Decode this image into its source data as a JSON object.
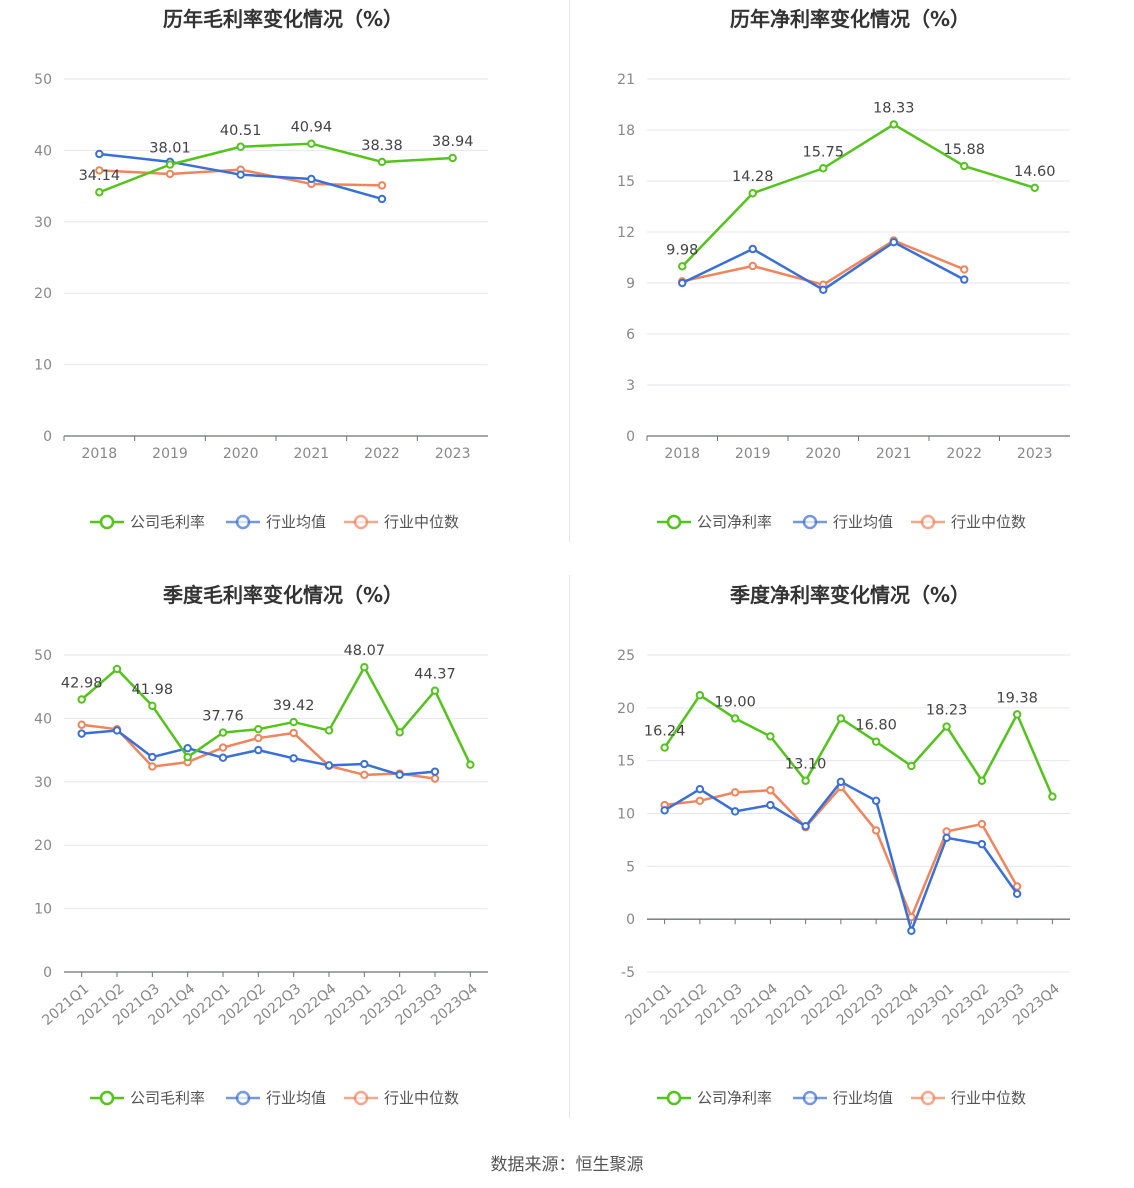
{
  "colors": {
    "company": "#52c41a",
    "avg": "#3a6fd8",
    "median": "#f0845c",
    "grid": "#e4e6ef",
    "axis": "#6e7079"
  },
  "legend": {
    "avg": "行业均值",
    "median": "行业中位数"
  },
  "footer": "数据来源：恒生聚源",
  "chart_data": [
    {
      "type": "line",
      "title": "历年毛利率变化情况（%）",
      "categories": [
        "2018",
        "2019",
        "2020",
        "2021",
        "2022",
        "2023"
      ],
      "ylim": [
        0,
        50
      ],
      "yticks": [
        0,
        10,
        20,
        30,
        40,
        50
      ],
      "rotate_labels": false,
      "series": [
        {
          "name": "公司毛利率",
          "key": "company",
          "values": [
            34.14,
            38.01,
            40.51,
            40.94,
            38.38,
            38.94
          ],
          "labels": [
            true,
            true,
            true,
            true,
            true,
            true
          ]
        },
        {
          "name": "行业均值",
          "key": "avg",
          "values": [
            39.5,
            38.4,
            36.6,
            36.0,
            33.2,
            null
          ]
        },
        {
          "name": "行业中位数",
          "key": "median",
          "values": [
            37.2,
            36.7,
            37.3,
            35.3,
            35.1,
            null
          ]
        }
      ]
    },
    {
      "type": "line",
      "title": "历年净利率变化情况（%）",
      "categories": [
        "2018",
        "2019",
        "2020",
        "2021",
        "2022",
        "2023"
      ],
      "ylim": [
        0,
        21
      ],
      "yticks": [
        0,
        3,
        6,
        9,
        12,
        15,
        18,
        21
      ],
      "rotate_labels": false,
      "series": [
        {
          "name": "公司净利率",
          "key": "company",
          "values": [
            9.98,
            14.28,
            15.75,
            18.33,
            15.88,
            14.6
          ],
          "labels": [
            true,
            true,
            true,
            true,
            true,
            true
          ]
        },
        {
          "name": "行业均值",
          "key": "avg",
          "values": [
            9.0,
            11.0,
            8.6,
            11.4,
            9.2,
            null
          ]
        },
        {
          "name": "行业中位数",
          "key": "median",
          "values": [
            9.1,
            10.0,
            8.9,
            11.5,
            9.8,
            null
          ]
        }
      ]
    },
    {
      "type": "line",
      "title": "季度毛利率变化情况（%）",
      "categories": [
        "2021Q1",
        "2021Q2",
        "2021Q3",
        "2021Q4",
        "2022Q1",
        "2022Q2",
        "2022Q3",
        "2022Q4",
        "2023Q1",
        "2023Q2",
        "2023Q3",
        "2023Q4"
      ],
      "ylim": [
        0,
        50
      ],
      "yticks": [
        0,
        10,
        20,
        30,
        40,
        50
      ],
      "rotate_labels": true,
      "series": [
        {
          "name": "公司毛利率",
          "key": "company",
          "values": [
            42.98,
            47.8,
            41.98,
            33.9,
            37.76,
            38.3,
            39.42,
            38.1,
            48.07,
            37.8,
            44.37,
            32.7
          ],
          "labels": [
            true,
            false,
            true,
            false,
            true,
            false,
            true,
            false,
            true,
            false,
            true,
            false
          ]
        },
        {
          "name": "行业均值",
          "key": "avg",
          "values": [
            37.6,
            38.1,
            33.9,
            35.3,
            33.8,
            35.0,
            33.7,
            32.6,
            32.8,
            31.1,
            31.6,
            null
          ]
        },
        {
          "name": "行业中位数",
          "key": "median",
          "values": [
            39.0,
            38.3,
            32.4,
            33.1,
            35.4,
            36.9,
            37.7,
            32.5,
            31.1,
            31.3,
            30.5,
            null
          ]
        }
      ]
    },
    {
      "type": "line",
      "title": "季度净利率变化情况（%）",
      "categories": [
        "2021Q1",
        "2021Q2",
        "2021Q3",
        "2021Q4",
        "2022Q1",
        "2022Q2",
        "2022Q3",
        "2022Q4",
        "2023Q1",
        "2023Q2",
        "2023Q3",
        "2023Q4"
      ],
      "ylim": [
        -5,
        25
      ],
      "yticks": [
        -5,
        0,
        5,
        10,
        15,
        20,
        25
      ],
      "rotate_labels": true,
      "series": [
        {
          "name": "公司净利率",
          "key": "company",
          "values": [
            16.24,
            21.2,
            19.0,
            17.3,
            13.1,
            19.0,
            16.8,
            14.5,
            18.23,
            13.1,
            19.38,
            11.6
          ],
          "labels": [
            true,
            false,
            true,
            false,
            true,
            false,
            true,
            false,
            true,
            false,
            true,
            false
          ]
        },
        {
          "name": "行业均值",
          "key": "avg",
          "values": [
            10.3,
            12.3,
            10.2,
            10.8,
            8.8,
            13.0,
            11.2,
            -1.1,
            7.7,
            7.1,
            2.4,
            null
          ]
        },
        {
          "name": "行业中位数",
          "key": "median",
          "values": [
            10.8,
            11.2,
            12.0,
            12.2,
            8.7,
            12.5,
            8.4,
            0.2,
            8.3,
            9.0,
            3.1,
            null
          ]
        }
      ]
    }
  ]
}
